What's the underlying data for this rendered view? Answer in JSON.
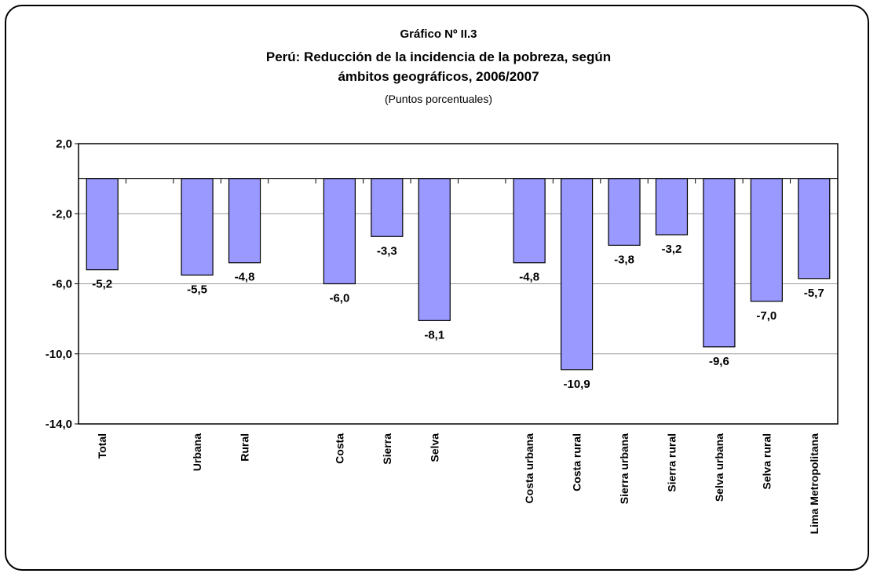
{
  "chart_data": {
    "type": "bar",
    "supertitle": "Gráfico Nº II.3",
    "title_line1": "Perú: Reducción de la incidencia de la pobreza, según",
    "title_line2": "ámbitos geográficos, 2006/2007",
    "subtitle": "(Puntos porcentuales)",
    "ylim": [
      -14,
      2
    ],
    "yticks": [
      "2,0",
      "-2,0",
      "-6,0",
      "-10,0",
      "-14,0"
    ],
    "ytick_values": [
      2,
      -2,
      -6,
      -10,
      -14
    ],
    "grid": true,
    "bar_color": "#9999ff",
    "categories": [
      "Total",
      "Urbana",
      "Rural",
      "Costa",
      "Sierra",
      "Selva",
      "Costa urbana",
      "Costa rural",
      "Sierra urbana",
      "Sierra rural",
      "Selva urbana",
      "Selva rural",
      "Lima Metropolitana"
    ],
    "values": [
      -5.2,
      -5.5,
      -4.8,
      -6.0,
      -3.3,
      -8.1,
      -4.8,
      -10.9,
      -3.8,
      -3.2,
      -9.6,
      -7.0,
      -5.7
    ],
    "value_labels": [
      "-5,2",
      "-5,5",
      "-4,8",
      "-6,0",
      "-3,3",
      "-8,1",
      "-4,8",
      "-10,9",
      "-3,8",
      "-3,2",
      "-9,6",
      "-7,0",
      "-5,7"
    ]
  }
}
